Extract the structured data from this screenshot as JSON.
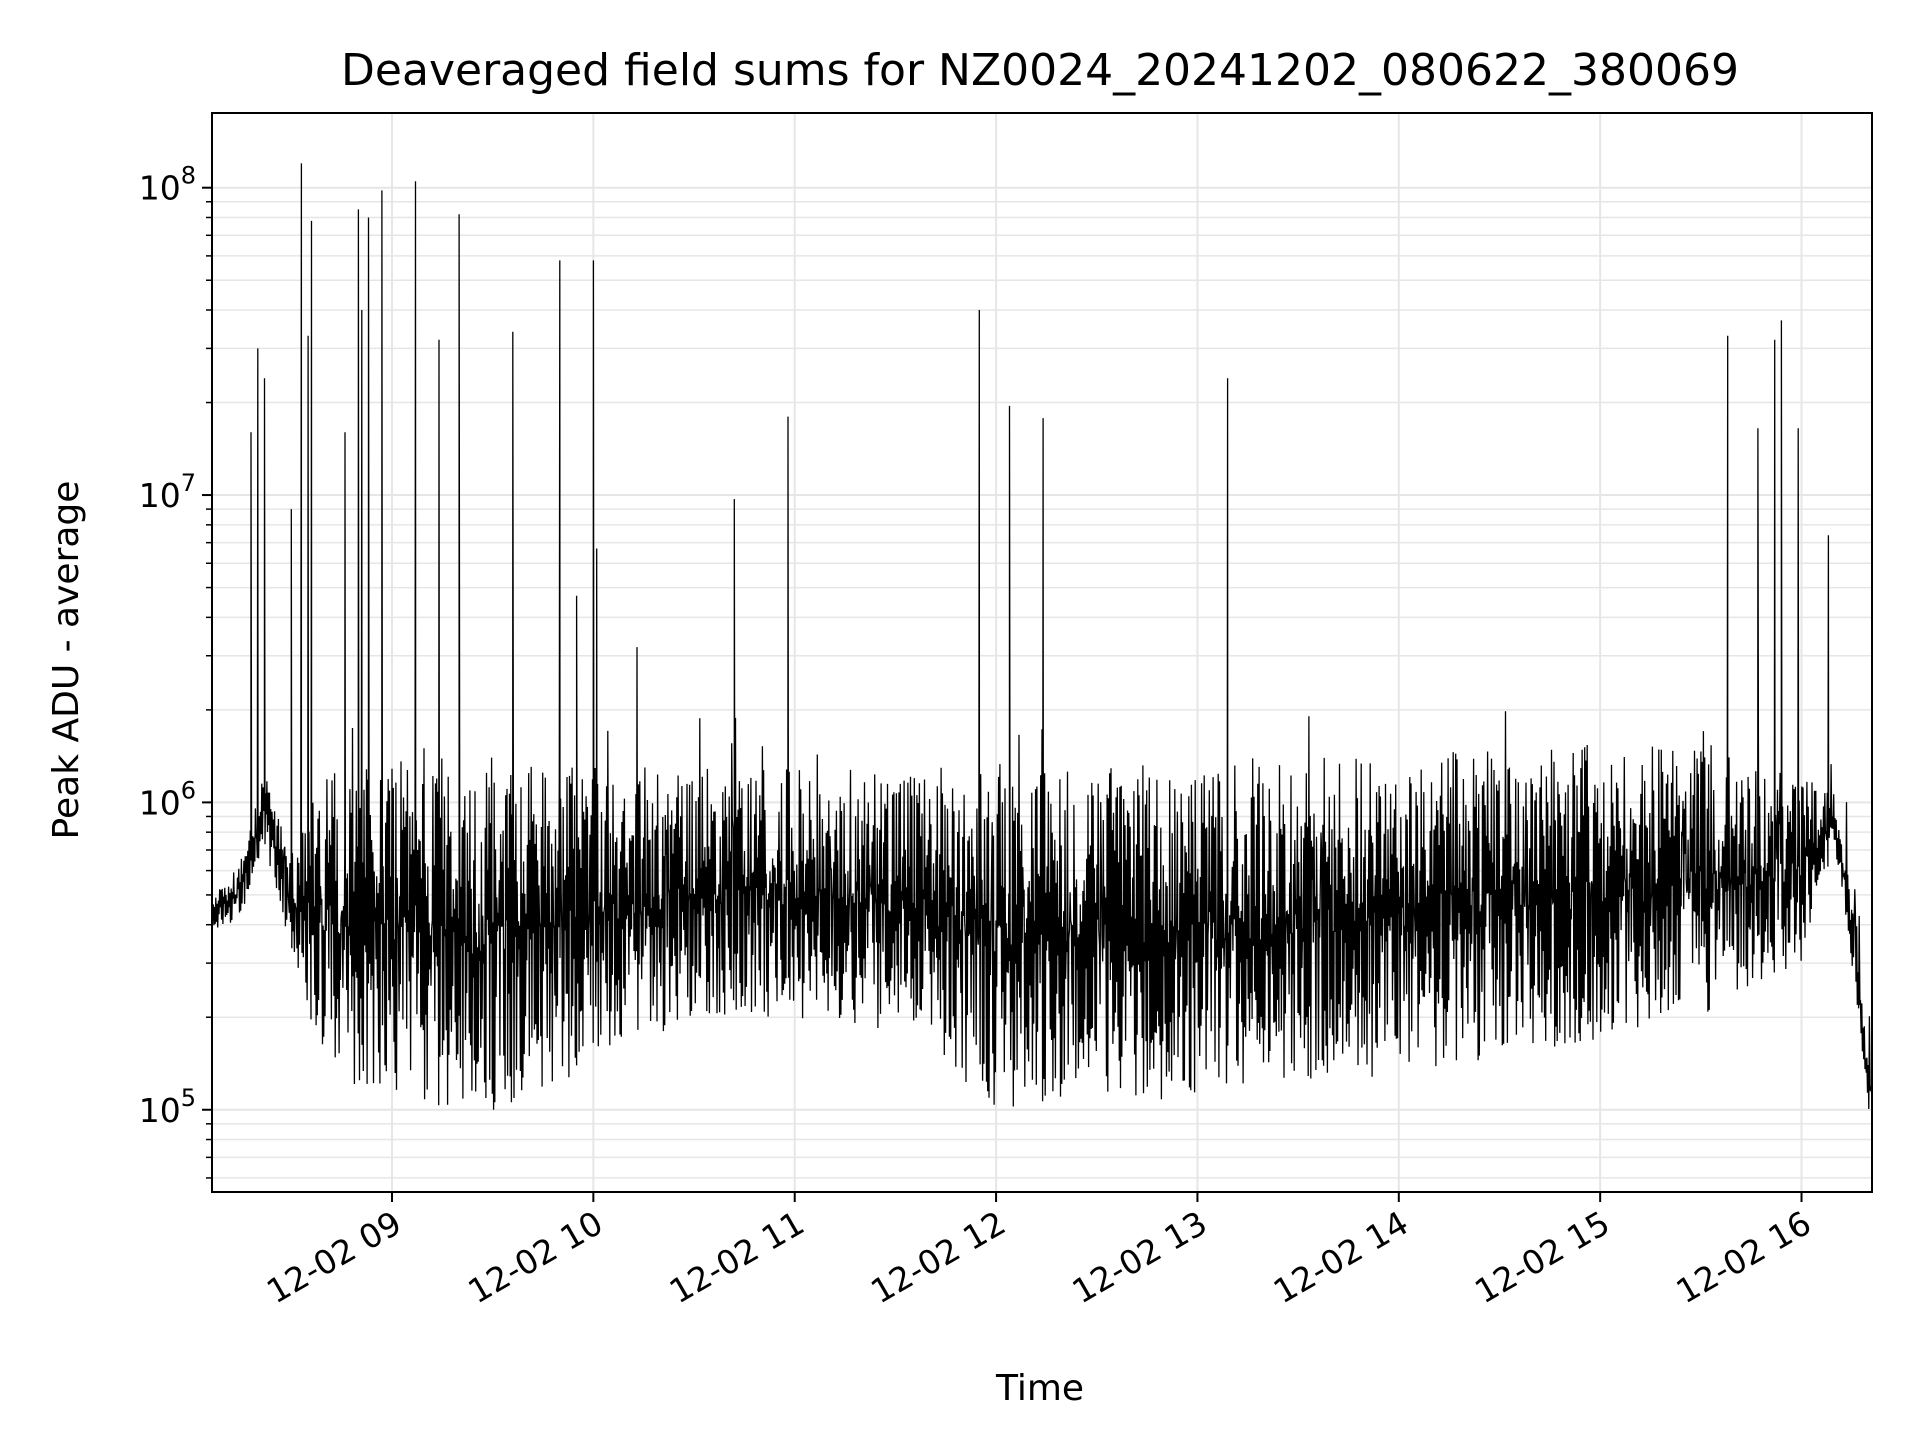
{
  "chart_data": {
    "type": "line",
    "title": "Deaveraged field sums for NZ0024_20241202_080622_380069",
    "xlabel": "Time",
    "ylabel": "Peak ADU - average",
    "yscale": "log",
    "ylim": [
      54000,
      175000000
    ],
    "xlim": [
      "2024-12-02 08:06:22",
      "2024-12-02 16:21:00"
    ],
    "grid": true,
    "legend": "none",
    "line_color": "#000000",
    "grid_color": "#e6e6e6",
    "x_ticks": [
      {
        "value": "2024-12-02 09:00",
        "label": "12-02 09"
      },
      {
        "value": "2024-12-02 10:00",
        "label": "12-02 10"
      },
      {
        "value": "2024-12-02 11:00",
        "label": "12-02 11"
      },
      {
        "value": "2024-12-02 12:00",
        "label": "12-02 12"
      },
      {
        "value": "2024-12-02 13:00",
        "label": "12-02 13"
      },
      {
        "value": "2024-12-02 14:00",
        "label": "12-02 14"
      },
      {
        "value": "2024-12-02 15:00",
        "label": "12-02 15"
      },
      {
        "value": "2024-12-02 16:00",
        "label": "12-02 16"
      }
    ],
    "y_ticks": [
      {
        "value": 100000,
        "base": "10",
        "exp": "5"
      },
      {
        "value": 1000000,
        "base": "10",
        "exp": "6"
      },
      {
        "value": 10000000,
        "base": "10",
        "exp": "7"
      },
      {
        "value": 100000000,
        "base": "10",
        "exp": "8"
      }
    ],
    "baseline_anchors": [
      {
        "t": "2024-12-02 08:06",
        "lo": 380000,
        "hi": 480000
      },
      {
        "t": "2024-12-02 08:15",
        "lo": 420000,
        "hi": 650000
      },
      {
        "t": "2024-12-02 08:22",
        "lo": 700000,
        "hi": 1300000
      },
      {
        "t": "2024-12-02 08:30",
        "lo": 300000,
        "hi": 700000
      },
      {
        "t": "2024-12-02 08:40",
        "lo": 140000,
        "hi": 1300000
      },
      {
        "t": "2024-12-02 09:00",
        "lo": 100000,
        "hi": 1400000
      },
      {
        "t": "2024-12-02 09:30",
        "lo": 95000,
        "hi": 1400000
      },
      {
        "t": "2024-12-02 10:00",
        "lo": 140000,
        "hi": 1300000
      },
      {
        "t": "2024-12-02 10:30",
        "lo": 200000,
        "hi": 1300000
      },
      {
        "t": "2024-12-02 11:00",
        "lo": 200000,
        "hi": 1300000
      },
      {
        "t": "2024-12-02 11:30",
        "lo": 180000,
        "hi": 1300000
      },
      {
        "t": "2024-12-02 12:00",
        "lo": 100000,
        "hi": 1350000
      },
      {
        "t": "2024-12-02 13:00",
        "lo": 110000,
        "hi": 1350000
      },
      {
        "t": "2024-12-02 14:00",
        "lo": 130000,
        "hi": 1450000
      },
      {
        "t": "2024-12-02 15:00",
        "lo": 170000,
        "hi": 1550000
      },
      {
        "t": "2024-12-02 15:30",
        "lo": 200000,
        "hi": 1500000
      },
      {
        "t": "2024-12-02 16:00",
        "lo": 300000,
        "hi": 1200000
      },
      {
        "t": "2024-12-02 16:10",
        "lo": 700000,
        "hi": 1100000
      },
      {
        "t": "2024-12-02 16:16",
        "lo": 250000,
        "hi": 450000
      },
      {
        "t": "2024-12-02 16:20",
        "lo": 100000,
        "hi": 140000
      }
    ],
    "spikes": [
      {
        "t": "2024-12-02 08:18",
        "value": 16000000
      },
      {
        "t": "2024-12-02 08:20",
        "value": 30000000
      },
      {
        "t": "2024-12-02 08:22",
        "value": 24000000
      },
      {
        "t": "2024-12-02 08:30",
        "value": 9000000
      },
      {
        "t": "2024-12-02 08:33",
        "value": 120000000
      },
      {
        "t": "2024-12-02 08:35",
        "value": 33000000
      },
      {
        "t": "2024-12-02 08:36",
        "value": 78000000
      },
      {
        "t": "2024-12-02 08:46",
        "value": 16000000
      },
      {
        "t": "2024-12-02 08:50",
        "value": 85000000
      },
      {
        "t": "2024-12-02 08:51",
        "value": 40000000
      },
      {
        "t": "2024-12-02 08:53",
        "value": 80000000
      },
      {
        "t": "2024-12-02 08:57",
        "value": 98000000
      },
      {
        "t": "2024-12-02 09:07",
        "value": 105000000
      },
      {
        "t": "2024-12-02 09:14",
        "value": 32000000
      },
      {
        "t": "2024-12-02 09:20",
        "value": 82000000
      },
      {
        "t": "2024-12-02 09:36",
        "value": 34000000
      },
      {
        "t": "2024-12-02 09:50",
        "value": 58000000
      },
      {
        "t": "2024-12-02 09:55",
        "value": 4700000
      },
      {
        "t": "2024-12-02 10:00",
        "value": 58000000
      },
      {
        "t": "2024-12-02 10:01",
        "value": 6700000
      },
      {
        "t": "2024-12-02 10:13",
        "value": 3200000
      },
      {
        "t": "2024-12-02 10:42",
        "value": 9700000
      },
      {
        "t": "2024-12-02 10:58",
        "value": 18000000
      },
      {
        "t": "2024-12-02 11:55",
        "value": 40000000
      },
      {
        "t": "2024-12-02 12:04",
        "value": 19500000
      },
      {
        "t": "2024-12-02 12:14",
        "value": 17800000
      },
      {
        "t": "2024-12-02 13:09",
        "value": 24000000
      },
      {
        "t": "2024-12-02 15:38",
        "value": 33000000
      },
      {
        "t": "2024-12-02 15:47",
        "value": 16500000
      },
      {
        "t": "2024-12-02 15:52",
        "value": 32000000
      },
      {
        "t": "2024-12-02 15:54",
        "value": 37000000
      },
      {
        "t": "2024-12-02 15:59",
        "value": 16500000
      },
      {
        "t": "2024-12-02 16:08",
        "value": 7400000
      }
    ]
  }
}
